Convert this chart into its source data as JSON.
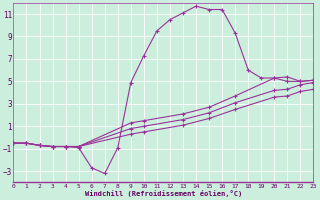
{
  "xlabel": "Windchill (Refroidissement éolien,°C)",
  "bg_color": "#cceedd",
  "grid_color": "#aaddcc",
  "line_color": "#993399",
  "xmin": 0,
  "xmax": 23,
  "ymin": -4,
  "ymax": 12,
  "xticks": [
    0,
    1,
    2,
    3,
    4,
    5,
    6,
    7,
    8,
    9,
    10,
    11,
    12,
    13,
    14,
    15,
    16,
    17,
    18,
    19,
    20,
    21,
    22,
    23
  ],
  "yticks": [
    -3,
    -1,
    1,
    3,
    5,
    7,
    9,
    11
  ],
  "line1_x": [
    0,
    1,
    2,
    3,
    4,
    5,
    6,
    7,
    8,
    9,
    10,
    11,
    12,
    13,
    14,
    15,
    16,
    17,
    18,
    19,
    20,
    21,
    22,
    23
  ],
  "line1_y": [
    -0.5,
    -0.5,
    -0.7,
    -0.8,
    -0.8,
    -0.9,
    -2.7,
    -3.2,
    -0.9,
    4.9,
    7.3,
    9.5,
    10.5,
    11.1,
    11.7,
    11.4,
    11.4,
    9.3,
    6.0,
    5.3,
    5.3,
    5.0,
    5.0,
    5.1
  ],
  "line2_x": [
    0,
    1,
    2,
    3,
    4,
    5,
    9,
    10,
    13,
    15,
    17,
    20,
    21,
    22,
    23
  ],
  "line2_y": [
    -0.5,
    -0.5,
    -0.7,
    -0.8,
    -0.8,
    -0.8,
    1.3,
    1.5,
    2.1,
    2.7,
    3.7,
    5.3,
    5.4,
    5.0,
    5.1
  ],
  "line3_x": [
    0,
    1,
    2,
    3,
    4,
    5,
    9,
    10,
    13,
    15,
    17,
    20,
    21,
    22,
    23
  ],
  "line3_y": [
    -0.5,
    -0.5,
    -0.7,
    -0.8,
    -0.8,
    -0.8,
    0.8,
    1.0,
    1.6,
    2.2,
    3.1,
    4.2,
    4.3,
    4.7,
    4.9
  ],
  "line4_x": [
    0,
    1,
    2,
    3,
    4,
    5,
    9,
    10,
    13,
    15,
    17,
    20,
    21,
    22,
    23
  ],
  "line4_y": [
    -0.5,
    -0.5,
    -0.7,
    -0.8,
    -0.8,
    -0.8,
    0.3,
    0.5,
    1.1,
    1.7,
    2.5,
    3.6,
    3.7,
    4.1,
    4.3
  ]
}
